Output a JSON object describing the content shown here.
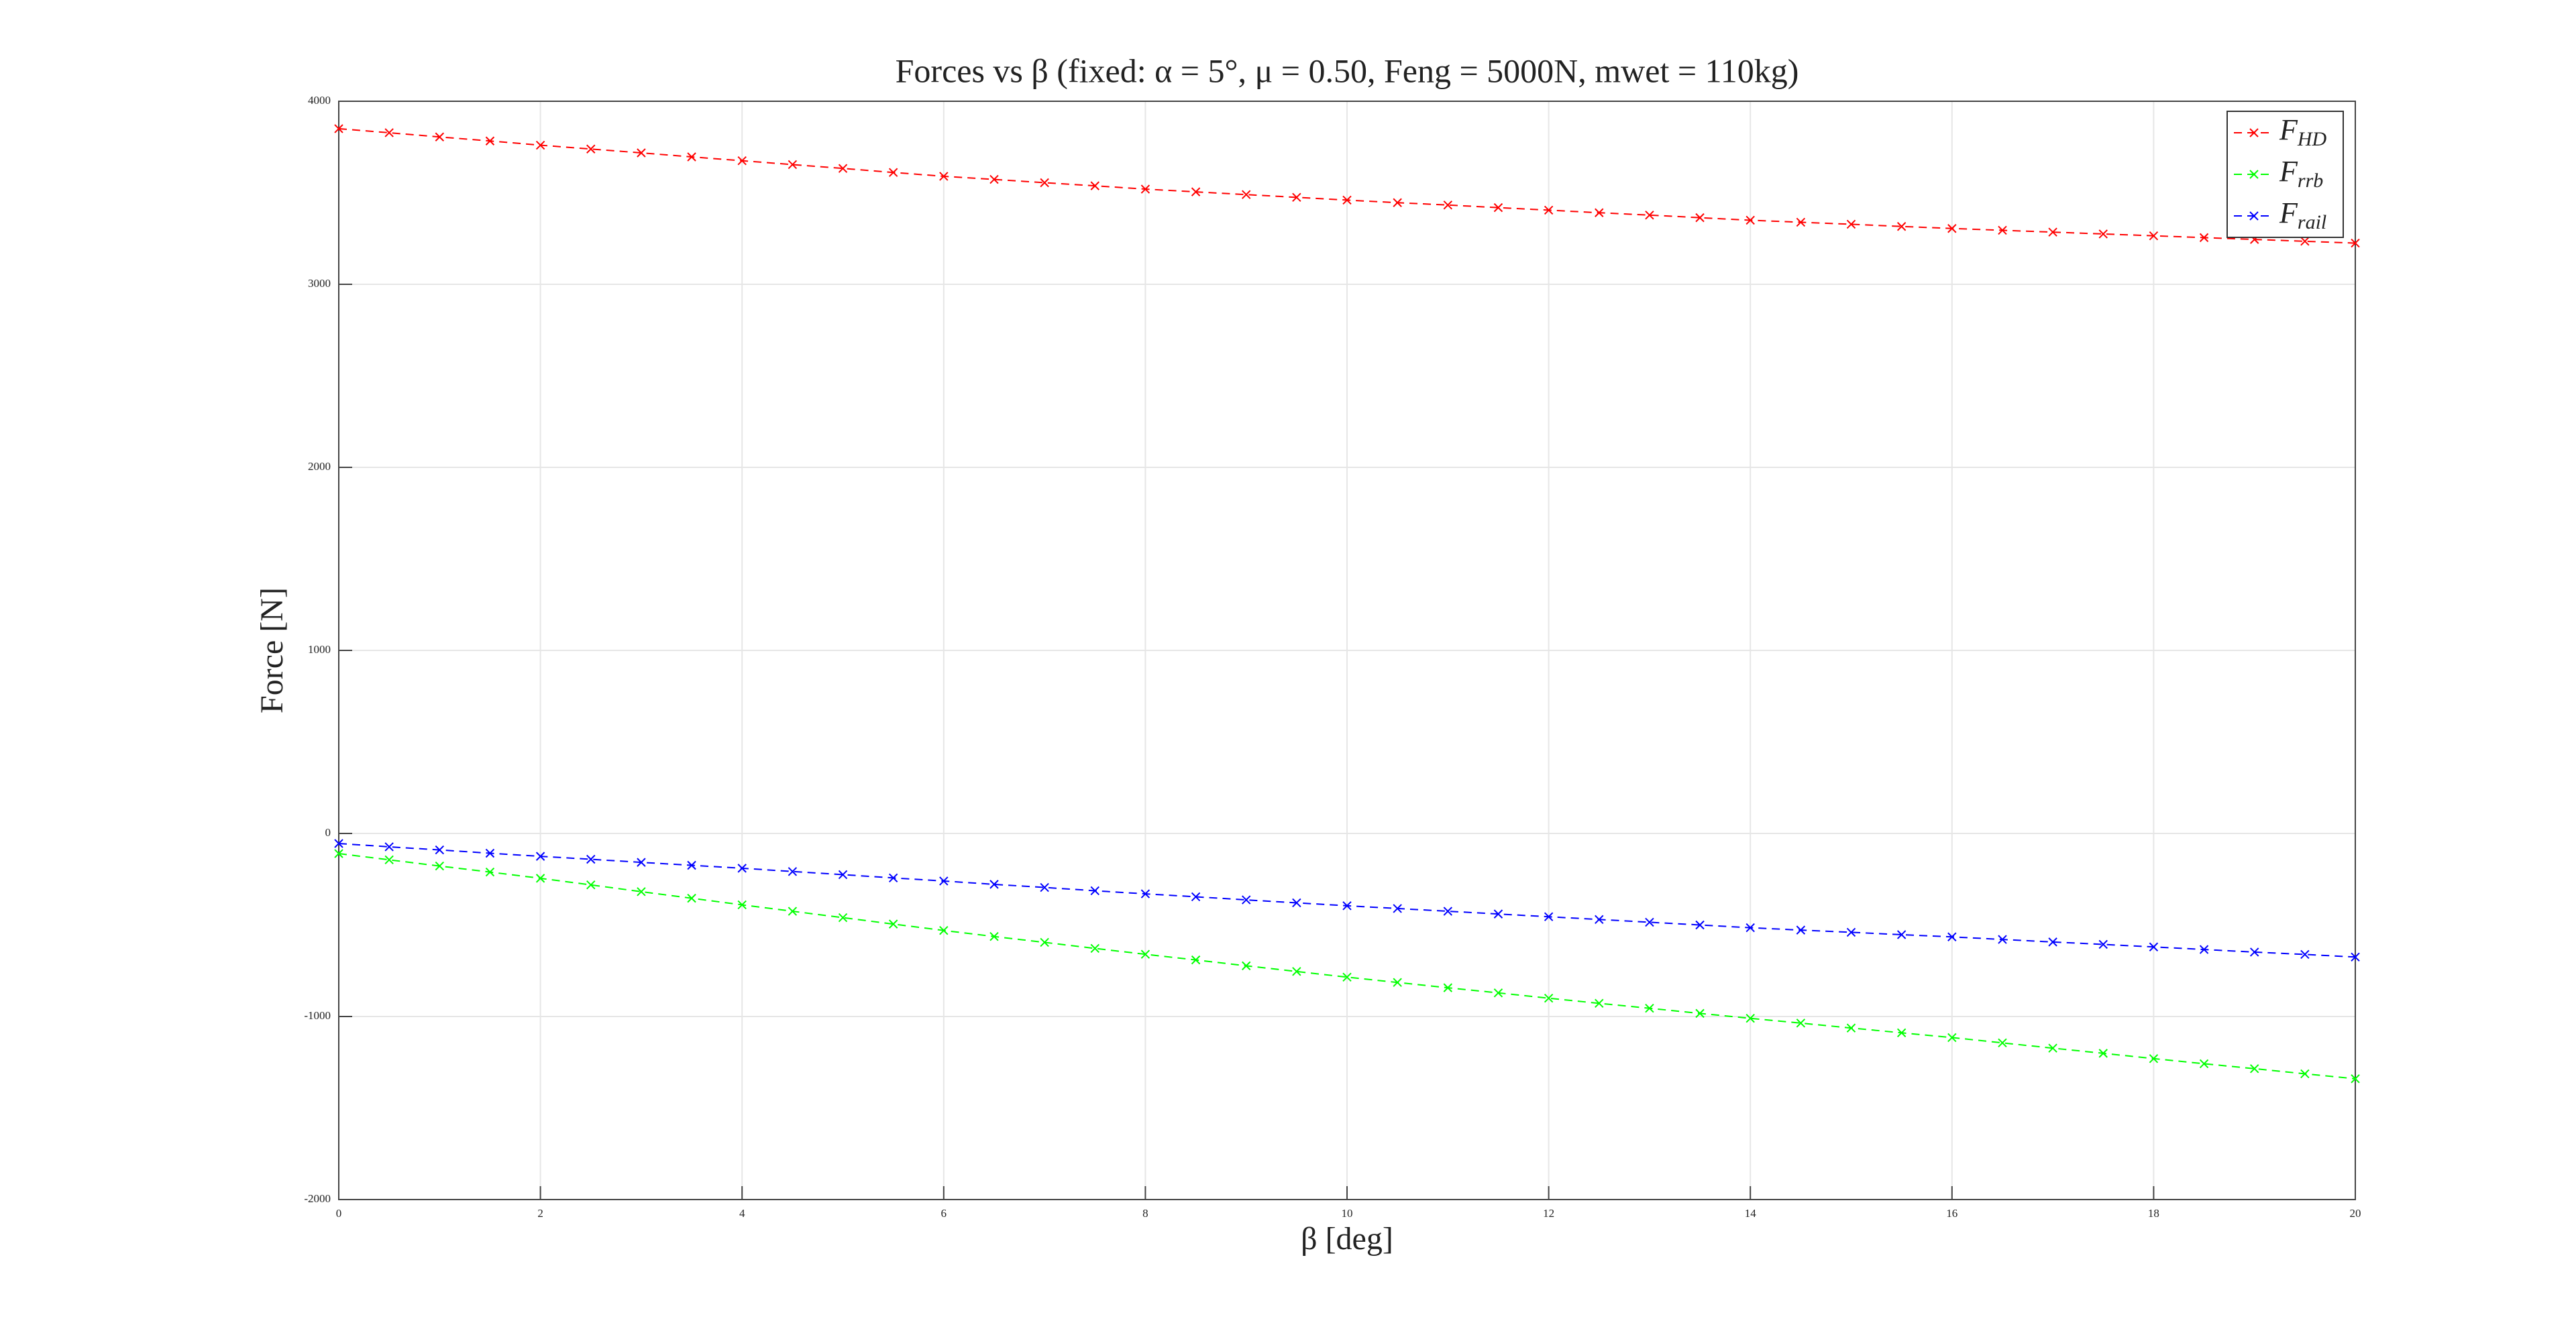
{
  "chart_data": {
    "type": "line",
    "title": "Forces vs β (fixed: α = 5°, μ = 0.50, Feng = 5000N, mwet = 110kg)",
    "xlabel": "β [deg]",
    "ylabel": "Force [N]",
    "x": [
      0,
      0.5,
      1,
      1.5,
      2,
      2.5,
      3,
      3.5,
      4,
      4.5,
      5,
      5.5,
      6,
      6.5,
      7,
      7.5,
      8,
      8.5,
      9,
      9.5,
      10,
      10.5,
      11,
      11.5,
      12,
      12.5,
      13,
      13.5,
      14,
      14.5,
      15,
      15.5,
      16,
      16.5,
      17,
      17.5,
      18,
      18.5,
      19,
      19.5,
      20
    ],
    "series": [
      {
        "name": "FHD",
        "color": "#ff0000",
        "values": [
          3850,
          3828,
          3805,
          3783,
          3760,
          3739,
          3718,
          3696,
          3675,
          3654,
          3633,
          3611,
          3590,
          3573,
          3555,
          3538,
          3520,
          3505,
          3490,
          3475,
          3460,
          3446,
          3433,
          3419,
          3405,
          3391,
          3378,
          3364,
          3350,
          3339,
          3328,
          3316,
          3305,
          3295,
          3285,
          3275,
          3265,
          3255,
          3245,
          3235,
          3225
        ]
      },
      {
        "name": "Frrb",
        "color": "#00ff00",
        "values": [
          -110,
          -144,
          -178,
          -211,
          -245,
          -281,
          -318,
          -354,
          -390,
          -425,
          -460,
          -495,
          -530,
          -563,
          -595,
          -628,
          -660,
          -691,
          -723,
          -754,
          -785,
          -814,
          -843,
          -871,
          -900,
          -928,
          -955,
          -983,
          -1010,
          -1036,
          -1063,
          -1089,
          -1115,
          -1144,
          -1173,
          -1201,
          -1230,
          -1258,
          -1285,
          -1313,
          -1340
        ]
      },
      {
        "name": "Frail",
        "color": "#0000ff",
        "values": [
          -55,
          -73,
          -90,
          -108,
          -125,
          -141,
          -158,
          -174,
          -190,
          -208,
          -225,
          -243,
          -260,
          -278,
          -295,
          -313,
          -330,
          -346,
          -363,
          -379,
          -395,
          -410,
          -425,
          -440,
          -455,
          -470,
          -485,
          -500,
          -515,
          -528,
          -540,
          -553,
          -565,
          -579,
          -593,
          -606,
          -620,
          -634,
          -648,
          -661,
          -675
        ]
      }
    ],
    "xlim": [
      0,
      20
    ],
    "xticks": [
      0,
      2,
      4,
      6,
      8,
      10,
      12,
      14,
      16,
      18,
      20
    ],
    "ylim": [
      -2000,
      4000
    ],
    "yticks": [
      -2000,
      -1000,
      0,
      1000,
      2000,
      3000,
      4000
    ],
    "grid": true,
    "legend": "top-right"
  }
}
